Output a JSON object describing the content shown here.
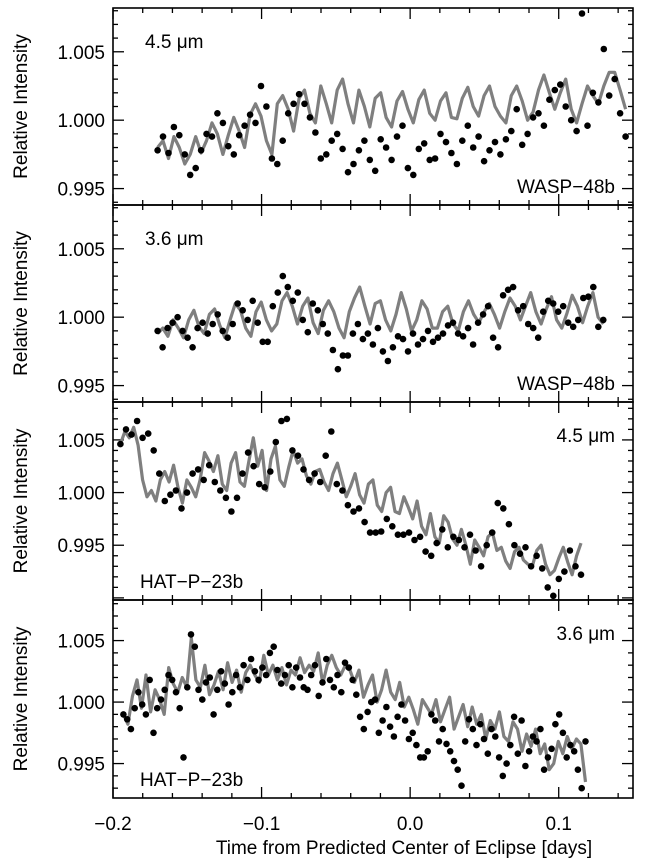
{
  "chart_data": {
    "type": "scatter",
    "xlabel": "Time from Predicted Center of Eclipse [days]",
    "xlim": [
      -0.2,
      0.15
    ],
    "xticks": [
      -0.2,
      -0.1,
      0.0,
      0.1
    ],
    "xtick_labels": [
      "−0.2",
      "−0.1",
      "0.0",
      "0.1"
    ],
    "panels": [
      {
        "ylabel": "Relative Intensity",
        "ylim": [
          0.9938,
          1.0082
        ],
        "yticks": [
          0.995,
          1.0,
          1.005
        ],
        "ytick_labels": [
          "0.995",
          "1.000",
          "1.005"
        ],
        "wavelength_label": "4.5 μm",
        "planet_label": "WASP−48b",
        "wavelength_pos": "top-left",
        "planet_pos": "bottom-right",
        "x_start": -0.17,
        "x_end": 0.145,
        "points_y": [
          0.9978,
          0.9988,
          0.9976,
          0.9995,
          0.9989,
          0.9975,
          0.996,
          0.9965,
          0.9978,
          0.999,
          0.9988,
          1.0005,
          0.9998,
          0.9981,
          0.9975,
          0.9989,
          0.9996,
          1.0004,
          0.9998,
          1.0025,
          1.001,
          0.9972,
          0.9968,
          0.9985,
          1.0005,
          1.0012,
          1.0019,
          1.0012,
          1.0002,
          0.9991,
          0.9972,
          0.9975,
          0.9985,
          0.999,
          0.9979,
          0.9962,
          0.9968,
          0.9978,
          0.9985,
          0.9971,
          0.9963,
          0.9986,
          0.998,
          0.9971,
          0.9988,
          0.9996,
          0.9965,
          0.996,
          0.9979,
          0.9983,
          0.9971,
          0.9972,
          0.999,
          0.9984,
          0.9976,
          0.9968,
          0.9985,
          0.9996,
          0.998,
          0.9988,
          0.997,
          0.9978,
          0.9984,
          0.9975,
          0.9986,
          0.9992,
          1.0008,
          0.9982,
          0.999,
          1.0002,
          1.0005,
          0.9996,
          1.0015,
          1.0022,
          1.0026,
          1.001,
          1.0,
          0.9992,
          1.0078,
          0.9996,
          1.002,
          1.0013,
          1.0052,
          1.0018,
          1.003,
          1.0005,
          0.9988
        ],
        "model_y": [
          0.998,
          0.9985,
          0.9972,
          0.9988,
          0.998,
          0.9968,
          0.9975,
          0.9988,
          0.9976,
          0.9985,
          0.9998,
          0.999,
          0.9975,
          0.9989,
          1.0002,
          0.9992,
          0.998,
          1.0004,
          1.0012,
          1.0003,
          0.9985,
          0.9975,
          1.0012,
          1.0018,
          1.0008,
          0.9992,
          1.0016,
          1.0022,
          1.0005,
          0.9998,
          1.0025,
          1.0012,
          0.9998,
          1.0022,
          1.003,
          1.0012,
          0.9998,
          1.0022,
          1.001,
          0.9995,
          1.0016,
          1.002,
          1.0002,
          0.9995,
          1.0014,
          1.0021,
          1.0008,
          0.9998,
          1.0015,
          1.0022,
          1.0005,
          1.0,
          1.0014,
          1.002,
          1.0002,
          1.0001,
          1.0016,
          1.0024,
          1.001,
          1.0003,
          1.0018,
          1.0025,
          1.001,
          1.0003,
          0.9998,
          1.0018,
          1.0025,
          1.0014,
          1.0,
          1.0006,
          1.0022,
          1.0033,
          1.002,
          1.0008,
          1.002,
          1.003,
          1.0008,
          0.9998,
          1.0012,
          1.0025,
          1.0018,
          1.0012,
          1.0025,
          1.0035,
          1.0035,
          1.0022,
          1.0008
        ]
      },
      {
        "ylabel": "Relative Intensity",
        "ylim": [
          0.9938,
          1.0082
        ],
        "yticks": [
          0.995,
          1.0,
          1.005
        ],
        "ytick_labels": [
          "0.995",
          "1.000",
          "1.005"
        ],
        "wavelength_label": "3.6 μm",
        "planet_label": "WASP−48b",
        "wavelength_pos": "top-left",
        "planet_pos": "bottom-right",
        "x_start": -0.17,
        "x_end": 0.13,
        "points_y": [
          0.999,
          0.9978,
          0.9992,
          0.9996,
          1.0,
          0.999,
          0.9985,
          0.9978,
          0.9992,
          0.9996,
          0.9988,
          0.9995,
          1.0002,
          0.999,
          0.9985,
          0.9995,
          1.001,
          1.0005,
          0.9998,
          1.0012,
          0.9996,
          0.9982,
          0.9982,
          1.0008,
          1.0018,
          1.003,
          1.0022,
          1.0012,
          1.0018,
          0.9998,
          0.9989,
          1.001,
          1.0005,
          0.9995,
          0.9988,
          0.9976,
          0.9962,
          0.9972,
          0.9972,
          0.9988,
          0.9995,
          0.9984,
          0.9988,
          0.998,
          0.9992,
          0.9975,
          0.9968,
          0.9978,
          0.9986,
          0.9984,
          0.9975,
          0.9988,
          0.998,
          0.9984,
          0.999,
          0.9982,
          0.9985,
          0.9988,
          0.9994,
          0.9996,
          0.9988,
          0.9986,
          0.9992,
          0.998,
          0.9996,
          1.0002,
          1.0008,
          0.9985,
          0.9978,
          1.0016,
          1.002,
          1.0022,
          1.0005,
          1.0008,
          0.9995,
          0.9992,
          0.9985,
          1.0004,
          1.0012,
          1.001,
          1.0004,
          1.0008,
          0.9996,
          0.9993,
          0.9998,
          1.0014,
          1.0015,
          1.0022,
          0.9993,
          0.9998
        ],
        "model_y": [
          0.9988,
          0.9992,
          0.9986,
          0.9998,
          0.9992,
          0.9985,
          0.9998,
          1.0005,
          0.9993,
          0.9988,
          1.0002,
          1.0006,
          0.9994,
          0.9985,
          0.9998,
          1.001,
          1.0005,
          0.9992,
          0.9986,
          1.0004,
          1.0011,
          0.9998,
          0.999,
          0.9995,
          1.0012,
          1.0018,
          1.0008,
          0.9995,
          1.0008,
          1.0014,
          0.9996,
          0.9988,
          1.0005,
          1.0012,
          1.0004,
          0.9992,
          0.9985,
          1.0004,
          1.0014,
          1.0022,
          1.0008,
          0.9995,
          1.001,
          1.0012,
          0.9998,
          0.999,
          1.0002,
          1.0018,
          1.0006,
          0.999,
          0.9998,
          1.0012,
          1.0006,
          0.9992,
          0.9992,
          1.0004,
          1.0008,
          0.9995,
          0.999,
          1.0004,
          1.0012,
          1.0002,
          0.9996,
          1.0004,
          1.001,
          1.0002,
          0.9992,
          1.0004,
          1.0014,
          1.0008,
          0.9998,
          1.0008,
          1.0018,
          1.0004,
          0.9995,
          1.0006,
          1.0015,
          0.9998,
          0.9992,
          1.0003,
          1.0016,
          1.0008,
          0.9996,
          1.0008,
          1.0018,
          1.0,
          0.9995
        ]
      },
      {
        "ylabel": "Relative Intensity",
        "ylim": [
          0.9898,
          1.0086
        ],
        "yticks": [
          0.995,
          1.0,
          1.005
        ],
        "ytick_labels": [
          "0.995",
          "1.000",
          "1.005"
        ],
        "wavelength_label": "4.5 μm",
        "planet_label": "HAT−P−23b",
        "wavelength_pos": "top-right",
        "planet_pos": "bottom-left",
        "x_start": -0.195,
        "x_end": 0.115,
        "points_y": [
          1.0046,
          1.006,
          1.0055,
          1.0068,
          1.0052,
          1.0056,
          1.004,
          1.0018,
          0.9992,
          0.9998,
          1.0002,
          0.9985,
          1.0,
          1.0018,
          1.0022,
          1.0012,
          1.0026,
          1.001,
          1.0002,
          0.9995,
          0.9982,
          0.9995,
          1.0018,
          1.0038,
          1.0025,
          1.0008,
          1.0005,
          1.002,
          1.0048,
          1.0068,
          1.007,
          1.004,
          1.0035,
          1.0022,
          1.0012,
          1.0018,
          1.001,
          1.0035,
          1.0058,
          1.0008,
          1.0002,
          0.9988,
          0.9982,
          0.9985,
          0.9972,
          0.9962,
          0.9962,
          0.9963,
          0.9975,
          0.9968,
          0.996,
          0.996,
          0.9962,
          0.9955,
          0.9958,
          0.9944,
          0.994,
          0.9952,
          0.9965,
          0.9948,
          0.9958,
          0.9955,
          0.9948,
          0.996,
          0.9945,
          0.993,
          0.995,
          0.9962,
          0.999,
          0.9985,
          0.997,
          0.995,
          0.9942,
          0.9948,
          0.993,
          0.994,
          0.9928,
          0.991,
          0.9902,
          0.9918,
          0.9925,
          0.9945,
          0.993,
          0.9922
        ],
        "model_y": [
          1.0046,
          1.0058,
          1.0052,
          1.0062,
          1.0045,
          1.0012,
          0.9996,
          1.0002,
          0.9992,
          1.0012,
          1.002,
          1.001,
          1.0026,
          1.0005,
          0.999,
          1.0012,
          1.0005,
          0.9996,
          1.0012,
          1.0038,
          1.003,
          1.002,
          1.0035,
          1.0008,
          1.0002,
          1.0028,
          1.0038,
          1.001,
          1.0006,
          1.003,
          1.0052,
          1.0025,
          1.004,
          1.0002,
          1.0032,
          1.0044,
          1.0012,
          1.0006,
          1.0024,
          1.004,
          1.0028,
          1.0032,
          1.0016,
          1.0008,
          1.002,
          1.0022,
          1.001,
          1.0002,
          1.0018,
          1.0028,
          1.0012,
          0.9996,
          1.0006,
          1.0018,
          0.9998,
          0.999,
          1.0008,
          1.0012,
          0.9988,
          0.9982,
          1.0,
          1.0005,
          0.9982,
          0.998,
          0.9996,
          0.9986,
          0.9975,
          0.9992,
          0.9968,
          0.996,
          0.998,
          0.9958,
          0.9952,
          0.9978,
          0.9972,
          0.9956,
          0.995,
          0.9965,
          0.995,
          0.9932,
          0.9955,
          0.9948,
          0.994,
          0.9958,
          0.9962,
          0.9945,
          0.9948,
          0.9935,
          0.9928,
          0.9944,
          0.9948,
          0.9936,
          0.9932,
          0.993,
          0.9945,
          0.995,
          0.9932,
          0.9922,
          0.9926,
          0.9938,
          0.9948,
          0.9934,
          0.9922,
          0.994,
          0.9952
        ]
      },
      {
        "ylabel": "Relative Intensity",
        "ylim": [
          0.9922,
          1.0083
        ],
        "yticks": [
          0.995,
          1.0,
          1.005
        ],
        "ytick_labels": [
          "0.995",
          "1.000",
          "1.005"
        ],
        "wavelength_label": "3.6 μm",
        "planet_label": "HAT−P−23b",
        "wavelength_pos": "top-right",
        "planet_pos": "bottom-left",
        "x_start": -0.193,
        "x_end": 0.118,
        "points_y": [
          0.999,
          0.9986,
          0.9978,
          0.9995,
          1.0008,
          0.9998,
          0.999,
          1.0018,
          0.9975,
          0.9995,
          1.0002,
          1.001,
          1.0022,
          1.0018,
          1.0008,
          0.9995,
          0.9955,
          1.0012,
          1.0055,
          1.0045,
          1.001,
          1.0002,
          1.0016,
          1.002,
          0.999,
          1.001,
          1.0025,
          1.0015,
          0.9998,
          1.0008,
          1.0022,
          1.0012,
          1.003,
          1.0018,
          1.0035,
          1.0025,
          1.0018,
          1.0028,
          1.0022,
          1.004,
          1.0045,
          1.0026,
          1.0015,
          1.0022,
          1.003,
          1.0012,
          1.0028,
          1.002,
          1.0012,
          1.001,
          1.0022,
          1.003,
          1.0005,
          1.0016,
          1.0035,
          1.0018,
          1.0012,
          1.0022,
          1.0008,
          1.0032,
          1.0028,
          1.0018,
          1.0006,
          0.9988,
          0.9978,
          0.9992,
          1.0,
          1.0002,
          0.9975,
          0.9985,
          0.9996,
          0.998,
          0.9972,
          0.9988,
          0.9998,
          0.9985,
          0.997,
          0.9975,
          0.9965,
          0.9955,
          0.9955,
          0.996,
          0.999,
          0.9985,
          0.9968,
          0.9978,
          0.9966,
          0.996,
          0.9952,
          0.9945,
          0.9932,
          0.9968,
          0.9986,
          0.9978,
          0.9965,
          0.9982,
          0.997,
          0.9958,
          0.9978,
          0.9972,
          0.9955,
          0.994,
          0.995,
          0.9965,
          0.9988,
          0.9958,
          0.9985,
          0.9948,
          0.996,
          0.9972,
          0.9968,
          0.9978,
          0.9945,
          0.9955,
          0.9962,
          0.9982,
          0.999,
          0.9975,
          0.9955,
          0.9965,
          0.996,
          0.9945,
          0.993,
          0.9968
        ],
        "model_y": [
          0.999,
          0.9982,
          1.0005,
          1.0018,
          0.9995,
          1.0022,
          0.9992,
          1.001,
          1.0002,
          0.999,
          1.0028,
          1.0015,
          1.0008,
          1.002,
          1.0012,
          1.0052,
          1.0018,
          1.0012,
          1.003,
          1.0006,
          1.0014,
          1.0025,
          1.001,
          1.0032,
          1.0016,
          1.0026,
          1.0008,
          1.0024,
          1.003,
          1.0022,
          1.0016,
          1.0038,
          1.0022,
          1.003,
          1.0018,
          1.0028,
          1.0014,
          1.0026,
          1.0022,
          1.0036,
          1.0024,
          1.003,
          1.0025,
          1.004,
          1.0015,
          1.003,
          1.0038,
          1.0028,
          1.0022,
          1.003,
          1.0026,
          1.0016,
          1.0026,
          1.0004,
          1.0014,
          1.0022,
          1.0,
          1.001,
          1.0026,
          1.0008,
          1.0002,
          1.0016,
          0.9996,
          1.0004,
          0.9994,
          0.9982,
          1.0002,
          0.9996,
          0.999,
          1.0002,
          0.9984,
          0.9994,
          1.0004,
          0.9978,
          0.9988,
          0.9998,
          0.998,
          0.9996,
          0.9982,
          0.999,
          0.997,
          0.9985,
          0.9978,
          0.9992,
          0.9972,
          0.9968,
          0.9984,
          0.9978,
          0.996,
          0.9974,
          0.9964,
          0.9978,
          0.9958,
          0.9966,
          0.9945,
          0.995,
          0.9968,
          0.9958,
          0.9972,
          0.9962,
          0.997,
          0.9966,
          0.9935
        ]
      }
    ]
  }
}
